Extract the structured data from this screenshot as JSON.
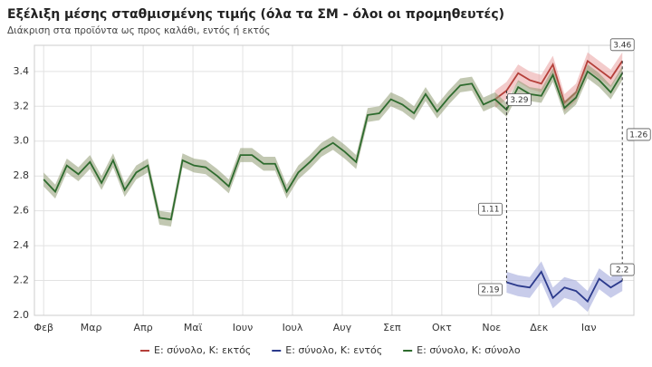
{
  "chart_data": {
    "type": "line",
    "title": "Εξέλιξη μέσης σταθμισμένης τιμής (όλα τα ΣΜ - όλοι οι προμηθευτές)",
    "subtitle": "Διάκριση στα προϊόντα ως προς καλάθι, εντός ή εκτός",
    "x": [
      0,
      1,
      2,
      3,
      4,
      5,
      6,
      7,
      8,
      9,
      10,
      11,
      12,
      13,
      14,
      15,
      16,
      17,
      18,
      19,
      20,
      21,
      22,
      23,
      24,
      25,
      26,
      27,
      28,
      29,
      30,
      31,
      32,
      33,
      34,
      35,
      36,
      37,
      38,
      39,
      40,
      41,
      42,
      43,
      44,
      45,
      46,
      47,
      48,
      49,
      50
    ],
    "xlim": [
      -0.8,
      51
    ],
    "xticks": [
      {
        "value": 0,
        "label": "Φεβ"
      },
      {
        "value": 4.1,
        "label": "Μαρ"
      },
      {
        "value": 8.6,
        "label": "Απρ"
      },
      {
        "value": 12.9,
        "label": "Μαϊ"
      },
      {
        "value": 17.2,
        "label": "Ιουν"
      },
      {
        "value": 21.5,
        "label": "Ιουλ"
      },
      {
        "value": 25.8,
        "label": "Αυγ"
      },
      {
        "value": 30.1,
        "label": "Σεπ"
      },
      {
        "value": 34.4,
        "label": "Οκτ"
      },
      {
        "value": 38.7,
        "label": "Νοε"
      },
      {
        "value": 42.8,
        "label": "Δεκ"
      },
      {
        "value": 47.1,
        "label": "Ιαν"
      }
    ],
    "ylim": [
      2.0,
      3.55
    ],
    "yticks": [
      {
        "value": 2.0,
        "label": "2.0"
      },
      2.2,
      2.4,
      2.6,
      2.8,
      {
        "value": 3.0,
        "label": "3.0"
      },
      3.2,
      3.4
    ],
    "grid": true,
    "series": [
      {
        "name": "Ε: σύνολο, Κ: εκτός",
        "color": "#b5403a",
        "band_color": "#e9a0a0",
        "band": 0.05,
        "values": [
          null,
          null,
          null,
          null,
          null,
          null,
          null,
          null,
          null,
          null,
          null,
          null,
          null,
          null,
          null,
          null,
          null,
          null,
          null,
          null,
          null,
          null,
          null,
          null,
          null,
          null,
          null,
          null,
          null,
          null,
          null,
          null,
          null,
          null,
          null,
          null,
          null,
          null,
          null,
          3.24,
          3.29,
          3.39,
          3.35,
          3.33,
          3.44,
          3.22,
          3.28,
          3.46,
          3.41,
          3.36,
          3.46
        ]
      },
      {
        "name": "Ε: σύνολο, Κ: εντός",
        "color": "#2b3a8c",
        "band_color": "#9aa3d8",
        "band": 0.06,
        "values": [
          null,
          null,
          null,
          null,
          null,
          null,
          null,
          null,
          null,
          null,
          null,
          null,
          null,
          null,
          null,
          null,
          null,
          null,
          null,
          null,
          null,
          null,
          null,
          null,
          null,
          null,
          null,
          null,
          null,
          null,
          null,
          null,
          null,
          null,
          null,
          null,
          null,
          null,
          null,
          null,
          2.19,
          2.17,
          2.16,
          2.25,
          2.1,
          2.16,
          2.14,
          2.08,
          2.21,
          2.16,
          2.2
        ]
      },
      {
        "name": "Ε: σύνολο, Κ: σύνολο",
        "color": "#2e6b2e",
        "band_color": "#8f9a72",
        "band": 0.04,
        "values": [
          2.78,
          2.71,
          2.86,
          2.81,
          2.88,
          2.76,
          2.89,
          2.72,
          2.82,
          2.86,
          2.56,
          2.55,
          2.89,
          2.86,
          2.85,
          2.8,
          2.74,
          2.92,
          2.92,
          2.87,
          2.87,
          2.71,
          2.82,
          2.88,
          2.95,
          2.99,
          2.94,
          2.88,
          3.15,
          3.16,
          3.24,
          3.21,
          3.16,
          3.27,
          3.17,
          3.25,
          3.32,
          3.33,
          3.21,
          3.24,
          3.18,
          3.31,
          3.27,
          3.26,
          3.38,
          3.19,
          3.25,
          3.4,
          3.35,
          3.28,
          3.39
        ]
      }
    ],
    "annotations": [
      {
        "x": 40,
        "value": 1.11
      },
      {
        "x": 50,
        "value": 1.26
      }
    ]
  }
}
